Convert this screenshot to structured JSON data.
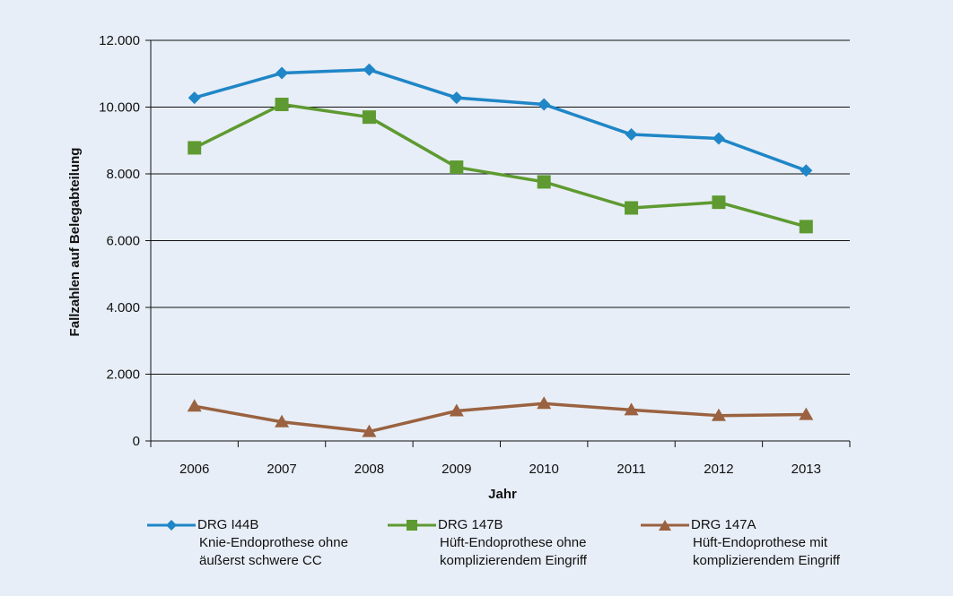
{
  "chart_data": {
    "type": "line",
    "xlabel": "Jahr",
    "ylabel": "Fallzahlen auf Belegabteilung",
    "ylim": [
      0,
      12000
    ],
    "yticks": [
      0,
      2000,
      4000,
      6000,
      8000,
      10000,
      12000
    ],
    "ytick_labels": [
      "0",
      "2.000",
      "4.000",
      "6.000",
      "8.000",
      "10.000",
      "12.000"
    ],
    "categories": [
      "2006",
      "2007",
      "2008",
      "2009",
      "2010",
      "2011",
      "2012",
      "2013"
    ],
    "grid": true,
    "legend_position": "bottom",
    "series": [
      {
        "name": "DRG I44B",
        "desc1": "Knie-Endoprothese ohne",
        "desc2": "äußerst schwere CC",
        "color": "#1f86c7",
        "marker": "diamond",
        "values": [
          10280,
          11020,
          11120,
          10280,
          10080,
          9180,
          9060,
          8100
        ]
      },
      {
        "name": "DRG 147B",
        "desc1": "Hüft-Endoprothese ohne",
        "desc2": "komplizierendem Eingriff",
        "color": "#5e9a31",
        "marker": "square",
        "values": [
          8780,
          10080,
          9700,
          8200,
          7760,
          6980,
          7150,
          6420
        ]
      },
      {
        "name": "DRG 147A",
        "desc1": "Hüft-Endoprothese mit",
        "desc2": "komplizierendem Eingriff",
        "color": "#9a6240",
        "marker": "triangle",
        "values": [
          1040,
          570,
          280,
          900,
          1120,
          930,
          760,
          790
        ]
      }
    ]
  }
}
